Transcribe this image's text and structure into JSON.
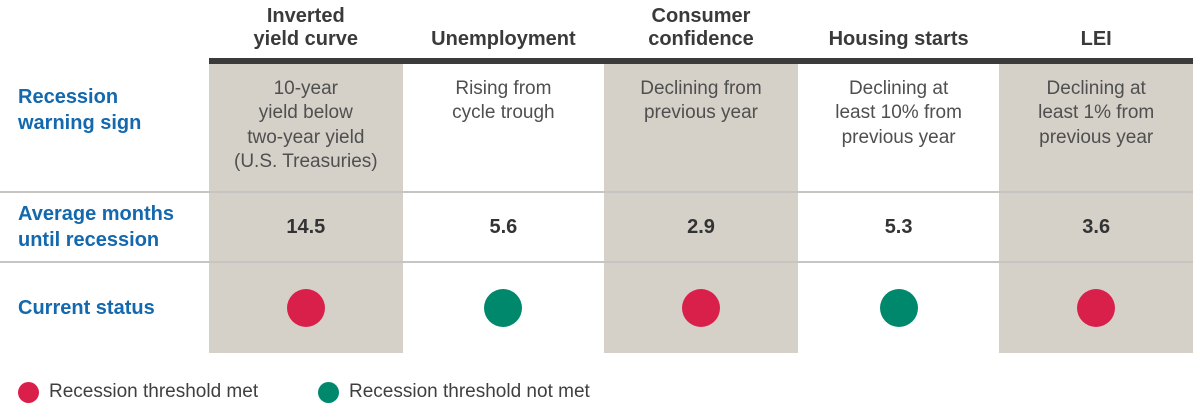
{
  "colors": {
    "threshold_met": "#d9204b",
    "threshold_not_met": "#00886c",
    "row_label_blue": "#1368ae",
    "column_shade": "#d5d1c9",
    "header_rule": "#3b3b3b",
    "row_divider": "#c7c5c1"
  },
  "row_labels": {
    "warning_sign": "Recession\nwarning sign",
    "avg_months": "Average months\nuntil recession",
    "current_status": "Current status"
  },
  "table": {
    "columns": [
      {
        "header": "Inverted\nyield curve",
        "warning_sign": "10-year\nyield below\ntwo-year yield\n(U.S. Treasuries)",
        "avg_months": "14.5",
        "status": "met"
      },
      {
        "header": "Unemployment",
        "warning_sign": "Rising from\ncycle trough",
        "avg_months": "5.6",
        "status": "not_met"
      },
      {
        "header": "Consumer\nconfidence",
        "warning_sign": "Declining from\nprevious year",
        "avg_months": "2.9",
        "status": "met"
      },
      {
        "header": "Housing starts",
        "warning_sign": "Declining at\nleast 10% from\nprevious year",
        "avg_months": "5.3",
        "status": "not_met"
      },
      {
        "header": "LEI",
        "warning_sign": "Declining at\nleast 1% from\nprevious year",
        "avg_months": "3.6",
        "status": "met"
      }
    ]
  },
  "legend": [
    {
      "label": "Recession threshold met",
      "status": "met"
    },
    {
      "label": "Recession threshold not met",
      "status": "not_met"
    }
  ],
  "chart_data": {
    "type": "table",
    "columns": [
      "Inverted yield curve",
      "Unemployment",
      "Consumer confidence",
      "Housing starts",
      "LEI"
    ],
    "rows": [
      {
        "label": "Recession warning sign",
        "values": [
          "10-year yield below two-year yield (U.S. Treasuries)",
          "Rising from cycle trough",
          "Declining from previous year",
          "Declining at least 10% from previous year",
          "Declining at least 1% from previous year"
        ]
      },
      {
        "label": "Average months until recession",
        "values": [
          14.5,
          5.6,
          2.9,
          5.3,
          3.6
        ]
      },
      {
        "label": "Current status",
        "values": [
          "Recession threshold met",
          "Recession threshold not met",
          "Recession threshold met",
          "Recession threshold not met",
          "Recession threshold met"
        ]
      }
    ],
    "legend": [
      "Recession threshold met",
      "Recession threshold not met"
    ],
    "layout_hints": {
      "shaded_columns": [
        "Inverted yield curve",
        "Consumer confidence",
        "LEI"
      ],
      "legend_position": "bottom-left"
    }
  }
}
